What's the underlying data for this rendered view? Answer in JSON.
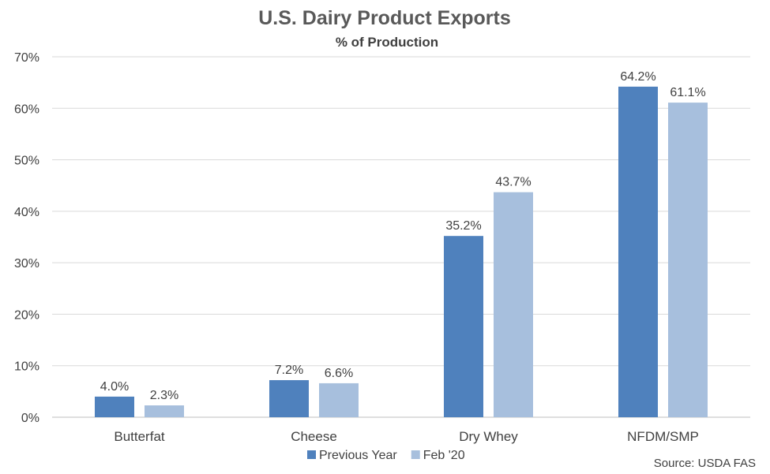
{
  "chart_data": {
    "type": "bar",
    "title": "U.S. Dairy Product Exports",
    "subtitle": "% of Production",
    "categories": [
      "Butterfat",
      "Cheese",
      "Dry Whey",
      "NFDM/SMP"
    ],
    "series": [
      {
        "name": "Previous Year",
        "values": [
          4.0,
          7.2,
          35.2,
          64.2
        ],
        "labels": [
          "4.0%",
          "7.2%",
          "35.2%",
          "64.2%"
        ],
        "color": "#4f81bd"
      },
      {
        "name": "Feb '20",
        "values": [
          2.3,
          6.6,
          43.7,
          61.1
        ],
        "labels": [
          "2.3%",
          "6.6%",
          "43.7%",
          "61.1%"
        ],
        "color": "#a7bfdd"
      }
    ],
    "ylim": [
      0,
      70
    ],
    "yticks": [
      0,
      10,
      20,
      30,
      40,
      50,
      60,
      70
    ],
    "ytick_labels": [
      "0%",
      "10%",
      "20%",
      "30%",
      "40%",
      "50%",
      "60%",
      "70%"
    ],
    "grid": true,
    "legend_position": "bottom",
    "source": "Source: USDA FAS"
  }
}
